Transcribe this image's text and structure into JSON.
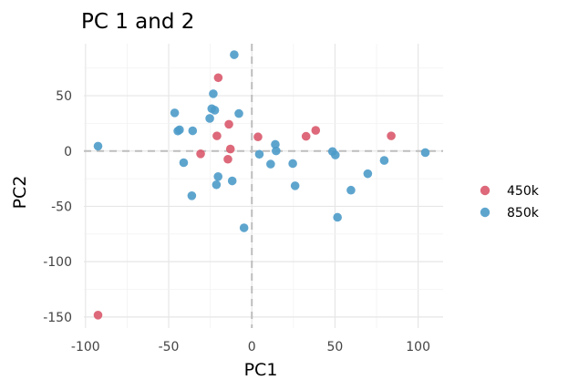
{
  "chart_data": {
    "type": "scatter",
    "title": "PC 1 and 2",
    "xlabel": "PC1",
    "ylabel": "PC2",
    "xlim": [
      -101,
      115
    ],
    "ylim": [
      -160,
      97
    ],
    "xticks": [
      -100,
      -50,
      0,
      50,
      100
    ],
    "yticks": [
      -150,
      -100,
      -50,
      0,
      50
    ],
    "x_tick_labels": [
      "-100",
      "-50",
      "0",
      "50",
      "100"
    ],
    "y_tick_labels": [
      "-150",
      "-100",
      "-50",
      "0",
      "50"
    ],
    "grid": true,
    "zero_lines": true,
    "legend_position": "right",
    "series": [
      {
        "name": "450k",
        "color": "#D9596B",
        "points": [
          {
            "x": -92.5,
            "y": -148.3
          },
          {
            "x": -20.2,
            "y": 66.3
          },
          {
            "x": -13.8,
            "y": 24.2
          },
          {
            "x": -21.0,
            "y": 13.7
          },
          {
            "x": -12.9,
            "y": 1.8
          },
          {
            "x": -30.8,
            "y": -2.5
          },
          {
            "x": -14.4,
            "y": -7.4
          },
          {
            "x": 3.7,
            "y": 12.8
          },
          {
            "x": 32.6,
            "y": 13.3
          },
          {
            "x": 38.4,
            "y": 18.7
          },
          {
            "x": 83.8,
            "y": 13.7
          }
        ]
      },
      {
        "name": "850k",
        "color": "#4D9BC9",
        "points": [
          {
            "x": -92.5,
            "y": 4.4
          },
          {
            "x": -46.4,
            "y": 34.5
          },
          {
            "x": -44.5,
            "y": 18.1
          },
          {
            "x": -43.5,
            "y": 19.2
          },
          {
            "x": -35.6,
            "y": 18.3
          },
          {
            "x": -41.0,
            "y": -10.5
          },
          {
            "x": -36.1,
            "y": -40.4
          },
          {
            "x": -25.3,
            "y": 29.5
          },
          {
            "x": -23.2,
            "y": 51.8
          },
          {
            "x": -24.1,
            "y": 38.3
          },
          {
            "x": -22.3,
            "y": 36.9
          },
          {
            "x": -10.6,
            "y": 87.1
          },
          {
            "x": -7.8,
            "y": 33.9
          },
          {
            "x": -20.3,
            "y": -23.1
          },
          {
            "x": -21.3,
            "y": -30.5
          },
          {
            "x": -11.8,
            "y": -27.0
          },
          {
            "x": -4.7,
            "y": -69.4
          },
          {
            "x": 4.5,
            "y": -2.9
          },
          {
            "x": 14.1,
            "y": 6.0
          },
          {
            "x": 14.6,
            "y": 0.1
          },
          {
            "x": 11.3,
            "y": -11.8
          },
          {
            "x": 24.6,
            "y": -11.3
          },
          {
            "x": 26.0,
            "y": -31.4
          },
          {
            "x": 48.5,
            "y": -0.4
          },
          {
            "x": 50.2,
            "y": -3.6
          },
          {
            "x": 51.5,
            "y": -59.9
          },
          {
            "x": 59.6,
            "y": -35.4
          },
          {
            "x": 69.7,
            "y": -20.5
          },
          {
            "x": 79.6,
            "y": -8.5
          },
          {
            "x": 104.3,
            "y": -1.4
          }
        ]
      }
    ]
  }
}
